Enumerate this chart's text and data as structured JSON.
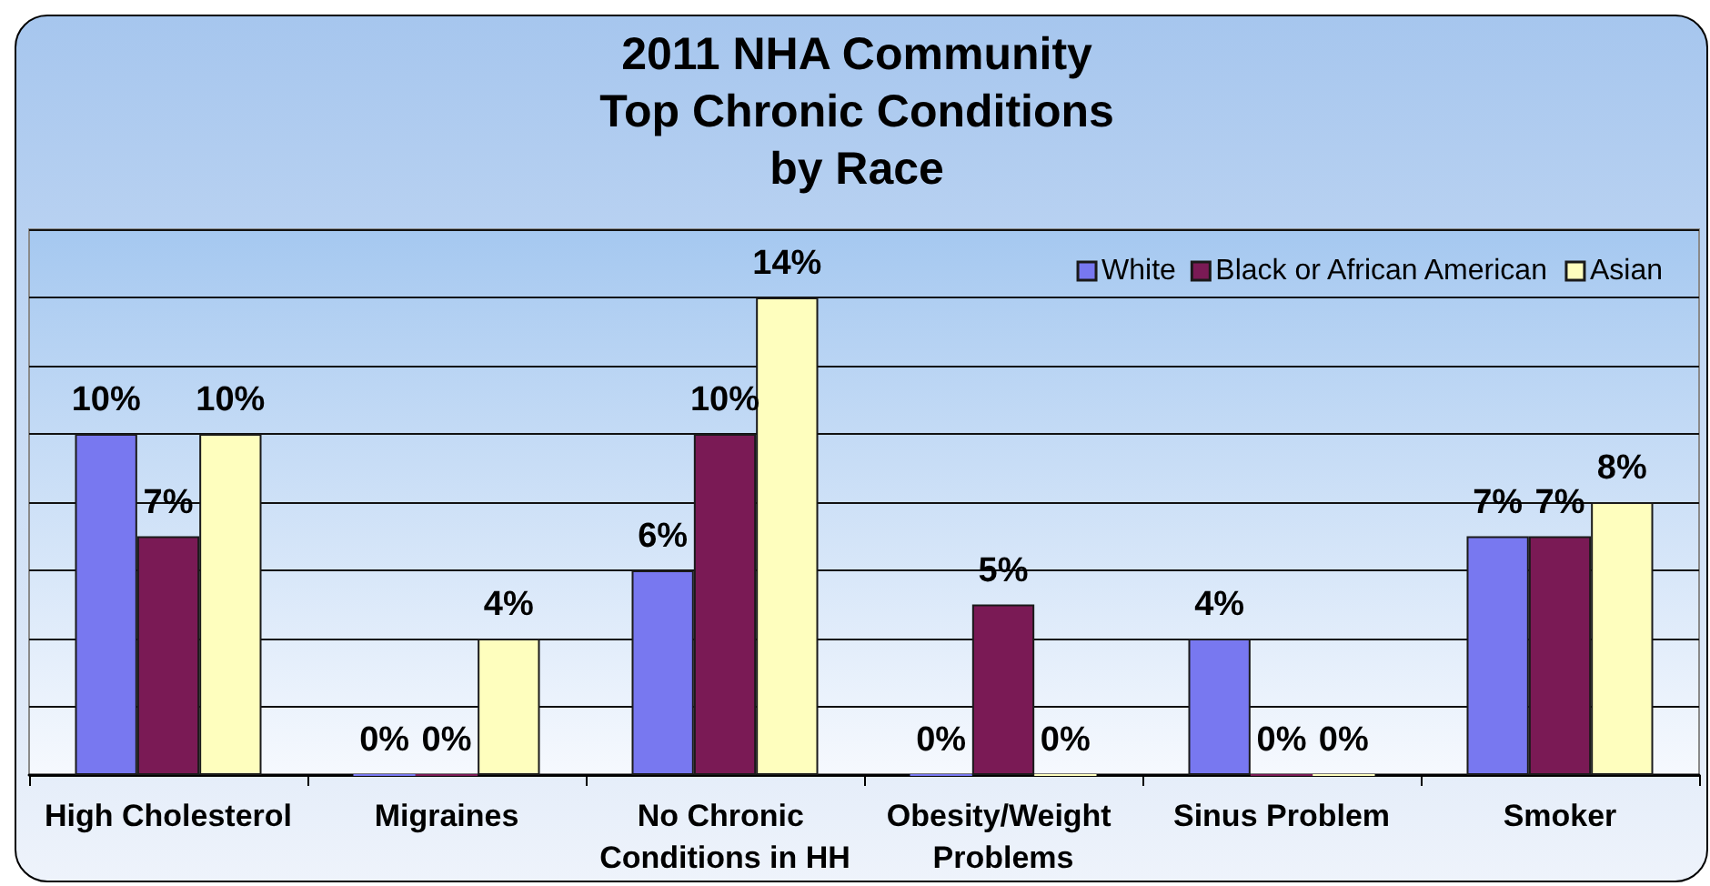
{
  "chart_data": {
    "type": "bar",
    "title": "2011 NHA Community\nTop Chronic Conditions\nby Race",
    "categories": [
      "High Cholesterol",
      "Migraines",
      "No Chronic Conditions in HH",
      "Obesity/Weight Problems",
      "Sinus Problem",
      "Smoker"
    ],
    "series": [
      {
        "name": "White",
        "color": "#7878f0",
        "values": [
          10,
          0,
          6,
          0,
          4,
          7
        ],
        "value_labels": [
          "10%",
          "0%",
          "6%",
          "0%",
          "4%",
          "7%"
        ]
      },
      {
        "name": "Black or African American",
        "color": "#7a1a55",
        "values": [
          7,
          0,
          10,
          5,
          0,
          7
        ],
        "value_labels": [
          "7%",
          "0%",
          "10%",
          "5%",
          "0%",
          "7%"
        ]
      },
      {
        "name": "Asian",
        "color": "#fefebe",
        "values": [
          10,
          4,
          14,
          0,
          0,
          8
        ],
        "value_labels": [
          "10%",
          "4%",
          "14%",
          "0%",
          "0%",
          "8%"
        ]
      }
    ],
    "ylim": [
      0,
      16
    ],
    "yticks": [
      {
        "value": 0,
        "label": null
      },
      {
        "value": 2,
        "label": null
      },
      {
        "value": 4,
        "label": null
      },
      {
        "value": 6,
        "label": null
      },
      {
        "value": 8,
        "label": null
      },
      {
        "value": 10,
        "label": null
      },
      {
        "value": 12,
        "label": null
      },
      {
        "value": 14,
        "label": null
      },
      {
        "value": 16,
        "label": null
      }
    ],
    "grid": "y",
    "legend": "top right"
  }
}
